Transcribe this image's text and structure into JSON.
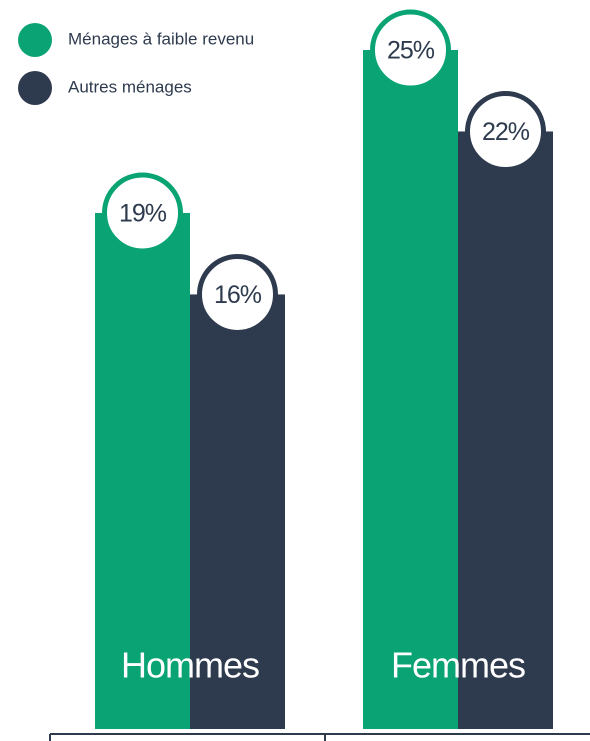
{
  "chart_data": {
    "type": "bar",
    "categories": [
      "Hommes",
      "Femmes"
    ],
    "series": [
      {
        "name": "Ménages à faible revenu",
        "color": "#0aa374",
        "values": [
          19,
          25
        ],
        "value_labels": [
          "19%",
          "25%"
        ]
      },
      {
        "name": "Autres ménages",
        "color": "#2e3a4e",
        "values": [
          16,
          22
        ],
        "value_labels": [
          "16%",
          "22%"
        ]
      }
    ]
  }
}
